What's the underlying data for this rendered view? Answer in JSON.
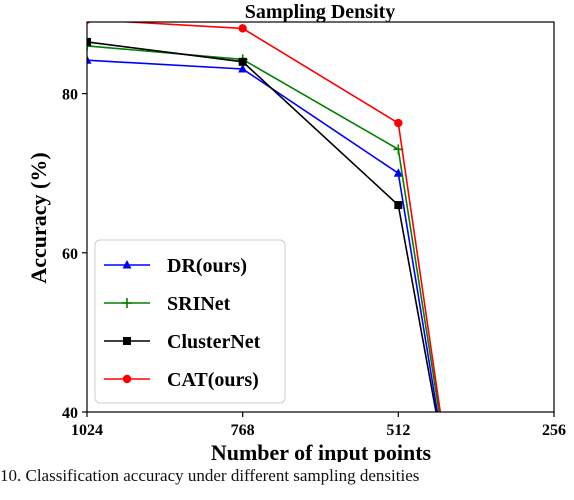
{
  "chart_data": {
    "type": "line",
    "title": "Sampling Density",
    "xlabel": "Number of input points",
    "ylabel": "Accuracy (%)",
    "categories": [
      "1024",
      "768",
      "512",
      "256"
    ],
    "ylim": [
      40,
      89
    ],
    "yticks": [
      40,
      60,
      80
    ],
    "grid": false,
    "legend_position": "lower-left",
    "series": [
      {
        "name": "DR(ours)",
        "color": "#0000ff",
        "marker": "triangle",
        "points": [
          [
            1024,
            84.2
          ],
          [
            768,
            83.1
          ],
          [
            512,
            70.0
          ],
          [
            448,
            40
          ]
        ]
      },
      {
        "name": "SRINet",
        "color": "#008000",
        "marker": "plus",
        "points": [
          [
            1024,
            86.0
          ],
          [
            768,
            84.3
          ],
          [
            512,
            73.0
          ],
          [
            445,
            40
          ]
        ]
      },
      {
        "name": "ClusterNet",
        "color": "#000000",
        "marker": "square",
        "points": [
          [
            1024,
            86.5
          ],
          [
            768,
            84.0
          ],
          [
            512,
            66.0
          ],
          [
            450,
            40
          ]
        ]
      },
      {
        "name": "CAT(ours)",
        "color": "#ff0000",
        "marker": "circle",
        "points": [
          [
            1024,
            89.3
          ],
          [
            768,
            88.2
          ],
          [
            512,
            76.3
          ],
          [
            443,
            40
          ]
        ]
      }
    ]
  },
  "caption": "10.  Classification accuracy under different sampling densities"
}
